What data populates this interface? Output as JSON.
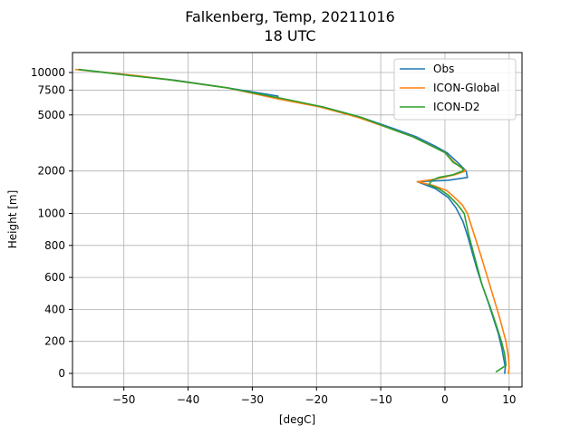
{
  "chart_data": {
    "type": "line",
    "title": "Falkenberg, Temp, 20211016",
    "subtitle": "18 UTC",
    "xlabel": "[degC]",
    "ylabel": "Height [m]",
    "xlim": [
      -58,
      12
    ],
    "x_ticks": [
      -50,
      -40,
      -30,
      -20,
      -10,
      0,
      10
    ],
    "x_tick_labels": [
      "−50",
      "−40",
      "−30",
      "−20",
      "−10",
      "0",
      "10"
    ],
    "y_ticks": [
      0,
      200,
      400,
      600,
      800,
      1000,
      2000,
      5000,
      7500,
      10000
    ],
    "y_tick_labels": [
      "0",
      "200",
      "400",
      "600",
      "800",
      "1000",
      "2000",
      "5000",
      "7500",
      "10000"
    ],
    "y_scale": "piecewise: linear 0-1000 m, logarithmic above 1000 m",
    "grid": true,
    "legend_position": "top-right",
    "series": [
      {
        "name": "Obs",
        "color": "#1f77b4",
        "points": [
          [
            9.3,
            0
          ],
          [
            9.4,
            40
          ],
          [
            9.2,
            80
          ],
          [
            8.9,
            150
          ],
          [
            8.3,
            250
          ],
          [
            7.5,
            350
          ],
          [
            6.7,
            450
          ],
          [
            5.8,
            550
          ],
          [
            5.0,
            650
          ],
          [
            4.3,
            750
          ],
          [
            3.6,
            850
          ],
          [
            2.8,
            950
          ],
          [
            1.7,
            1100
          ],
          [
            0.5,
            1300
          ],
          [
            -1.5,
            1500
          ],
          [
            -4.3,
            1680
          ],
          [
            0.5,
            1720
          ],
          [
            3.5,
            1800
          ],
          [
            3.3,
            2000
          ],
          [
            2.0,
            2300
          ],
          [
            0.3,
            2700
          ],
          [
            -1.5,
            3000
          ],
          [
            -4.5,
            3500
          ],
          [
            -8.0,
            4000
          ],
          [
            -13.0,
            4800
          ],
          [
            -19.0,
            5700
          ],
          [
            -26.0,
            6500
          ],
          [
            -26.0,
            6800
          ],
          [
            -34.0,
            7800
          ],
          [
            -42.0,
            8800
          ],
          [
            -50.0,
            9700
          ],
          [
            -57.0,
            10500
          ]
        ]
      },
      {
        "name": "ICON-Global",
        "color": "#ff7f0e",
        "points": [
          [
            9.9,
            0
          ],
          [
            10.0,
            40
          ],
          [
            9.9,
            100
          ],
          [
            9.5,
            200
          ],
          [
            8.5,
            350
          ],
          [
            7.0,
            550
          ],
          [
            5.5,
            750
          ],
          [
            4.3,
            900
          ],
          [
            3.5,
            1000
          ],
          [
            2.7,
            1150
          ],
          [
            1.5,
            1300
          ],
          [
            0.3,
            1450
          ],
          [
            -1.8,
            1580
          ],
          [
            -4.3,
            1680
          ],
          [
            -1.5,
            1750
          ],
          [
            1.5,
            1880
          ],
          [
            3.2,
            2000
          ],
          [
            1.5,
            2300
          ],
          [
            0.0,
            2700
          ],
          [
            -2.0,
            3000
          ],
          [
            -5.0,
            3500
          ],
          [
            -8.5,
            4000
          ],
          [
            -13.5,
            4800
          ],
          [
            -19.5,
            5700
          ],
          [
            -26.0,
            6500
          ],
          [
            -34.0,
            7800
          ],
          [
            -43.0,
            8900
          ],
          [
            -48.0,
            9500
          ],
          [
            -57.5,
            10500
          ]
        ]
      },
      {
        "name": "ICON-D2",
        "color": "#2ca02c",
        "points": [
          [
            8.0,
            10
          ],
          [
            9.5,
            50
          ],
          [
            9.3,
            120
          ],
          [
            8.8,
            200
          ],
          [
            8.0,
            300
          ],
          [
            7.0,
            420
          ],
          [
            5.8,
            550
          ],
          [
            4.8,
            700
          ],
          [
            3.8,
            850
          ],
          [
            3.0,
            1000
          ],
          [
            2.0,
            1150
          ],
          [
            0.5,
            1350
          ],
          [
            -1.0,
            1500
          ],
          [
            -2.5,
            1600
          ],
          [
            -2.0,
            1720
          ],
          [
            -1.0,
            1800
          ],
          [
            1.2,
            1880
          ],
          [
            2.8,
            2000
          ],
          [
            2.8,
            2100
          ],
          [
            1.3,
            2300
          ],
          [
            0.0,
            2700
          ],
          [
            -2.0,
            3000
          ],
          [
            -5.0,
            3500
          ],
          [
            -8.5,
            4000
          ],
          [
            -13.0,
            4800
          ],
          [
            -19.0,
            5700
          ],
          [
            -25.0,
            6500
          ],
          [
            -34.0,
            7800
          ],
          [
            -43.0,
            8900
          ],
          [
            -49.0,
            9500
          ],
          [
            -57.0,
            10500
          ]
        ]
      }
    ]
  }
}
